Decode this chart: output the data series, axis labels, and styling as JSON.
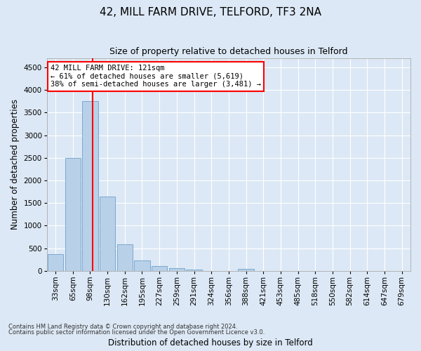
{
  "title": "42, MILL FARM DRIVE, TELFORD, TF3 2NA",
  "subtitle": "Size of property relative to detached houses in Telford",
  "xlabel": "Distribution of detached houses by size in Telford",
  "ylabel": "Number of detached properties",
  "categories": [
    "33sqm",
    "65sqm",
    "98sqm",
    "130sqm",
    "162sqm",
    "195sqm",
    "227sqm",
    "259sqm",
    "291sqm",
    "324sqm",
    "356sqm",
    "388sqm",
    "421sqm",
    "453sqm",
    "485sqm",
    "518sqm",
    "550sqm",
    "582sqm",
    "614sqm",
    "647sqm",
    "679sqm"
  ],
  "values": [
    370,
    2500,
    3750,
    1640,
    590,
    230,
    105,
    65,
    30,
    0,
    0,
    50,
    0,
    0,
    0,
    0,
    0,
    0,
    0,
    0,
    0
  ],
  "bar_color": "#b8d0e8",
  "bar_edge_color": "#7aaad0",
  "annotation_text": "42 MILL FARM DRIVE: 121sqm\n← 61% of detached houses are smaller (5,619)\n38% of semi-detached houses are larger (3,481) →",
  "annotation_box_color": "white",
  "annotation_box_edge_color": "red",
  "vline_color": "red",
  "vline_x": 2.15,
  "ylim": [
    0,
    4700
  ],
  "yticks": [
    0,
    500,
    1000,
    1500,
    2000,
    2500,
    3000,
    3500,
    4000,
    4500
  ],
  "footnote1": "Contains HM Land Registry data © Crown copyright and database right 2024.",
  "footnote2": "Contains public sector information licensed under the Open Government Licence v3.0.",
  "background_color": "#dce8f5",
  "grid_color": "#ffffff",
  "title_fontsize": 11,
  "subtitle_fontsize": 9,
  "axis_label_fontsize": 8.5,
  "tick_fontsize": 7.5,
  "annotation_fontsize": 7.5
}
